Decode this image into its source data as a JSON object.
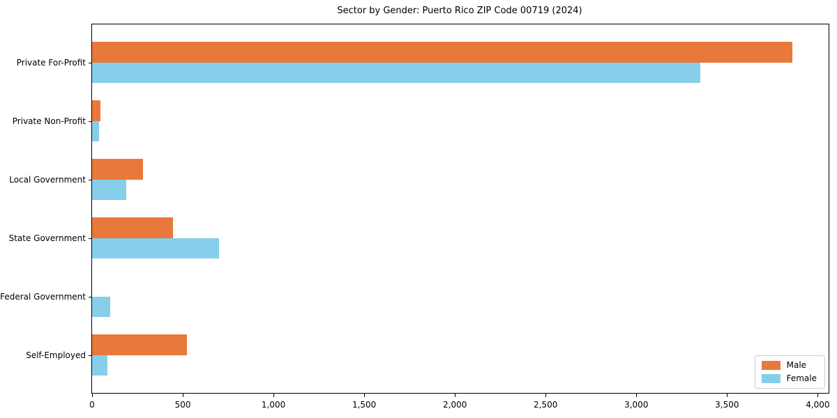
{
  "chart_data": {
    "type": "bar",
    "orientation": "horizontal",
    "title": "Sector by Gender: Puerto Rico ZIP Code 00719 (2024)",
    "xlabel": "",
    "ylabel": "",
    "categories": [
      "Private For-Profit",
      "Private Non-Profit",
      "Local Government",
      "State Government",
      "Federal Government",
      "Self-Employed"
    ],
    "series": [
      {
        "name": "Male",
        "color": "#e8793b",
        "values": [
          3860,
          45,
          281,
          446,
          0,
          522
        ]
      },
      {
        "name": "Female",
        "color": "#87ceeb",
        "values": [
          3353,
          37,
          189,
          698,
          101,
          86
        ]
      }
    ],
    "xlim": [
      0,
      4060
    ],
    "xticks": [
      0,
      500,
      1000,
      1500,
      2000,
      2500,
      3000,
      3500,
      4000
    ],
    "grid": false,
    "legend_position": "lower right",
    "spine_color": "#000000"
  }
}
